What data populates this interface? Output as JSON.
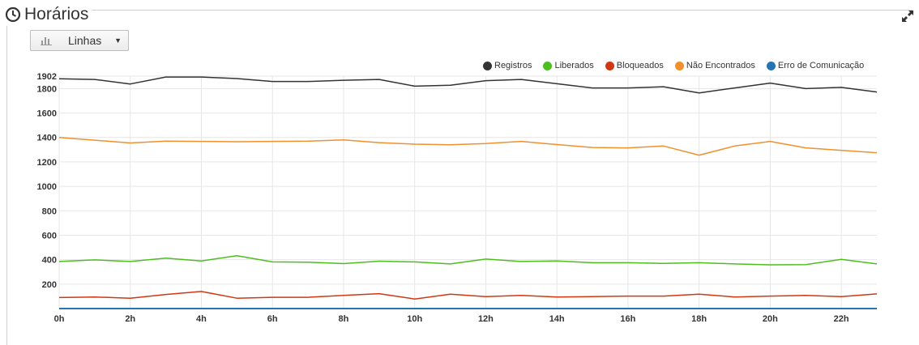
{
  "panel": {
    "title": "Horários"
  },
  "toolbar": {
    "chart_type_label": "Linhas"
  },
  "icons": {
    "title": "clock-icon",
    "expand": "expand-icon",
    "chart_type": "bar-chart-icon"
  },
  "chart_data": {
    "type": "line",
    "x": [
      "0h",
      "1h",
      "2h",
      "3h",
      "4h",
      "5h",
      "6h",
      "7h",
      "8h",
      "9h",
      "10h",
      "11h",
      "12h",
      "13h",
      "14h",
      "15h",
      "16h",
      "17h",
      "18h",
      "19h",
      "20h",
      "21h",
      "22h",
      "23h"
    ],
    "x_tick_labels": [
      "0h",
      "2h",
      "4h",
      "6h",
      "8h",
      "10h",
      "12h",
      "14h",
      "16h",
      "18h",
      "20h",
      "22h"
    ],
    "y_tick_labels": [
      "200",
      "400",
      "600",
      "800",
      "1000",
      "1200",
      "1400",
      "1600",
      "1800",
      "1902"
    ],
    "ylim": [
      0,
      1902
    ],
    "grid": true,
    "legend_position": "top-right",
    "series": [
      {
        "name": "Registros",
        "color": "#333333",
        "values": [
          1880,
          1875,
          1838,
          1895,
          1895,
          1882,
          1858,
          1858,
          1868,
          1875,
          1820,
          1828,
          1865,
          1875,
          1840,
          1805,
          1805,
          1815,
          1765,
          1805,
          1845,
          1800,
          1810,
          1772
        ]
      },
      {
        "name": "Liberados",
        "color": "#4cbf1f",
        "values": [
          385,
          398,
          385,
          412,
          390,
          432,
          382,
          380,
          368,
          388,
          382,
          365,
          405,
          385,
          390,
          375,
          375,
          370,
          375,
          365,
          358,
          360,
          402,
          365
        ]
      },
      {
        "name": "Bloqueados",
        "color": "#d03814",
        "values": [
          90,
          95,
          85,
          115,
          140,
          85,
          92,
          92,
          108,
          122,
          78,
          118,
          98,
          108,
          95,
          98,
          102,
          102,
          118,
          95,
          102,
          108,
          98,
          120
        ]
      },
      {
        "name": "Não Encontrados",
        "color": "#f0902e",
        "values": [
          1400,
          1378,
          1355,
          1370,
          1368,
          1365,
          1368,
          1370,
          1380,
          1358,
          1345,
          1340,
          1350,
          1368,
          1342,
          1318,
          1315,
          1330,
          1255,
          1330,
          1368,
          1315,
          1295,
          1275
        ]
      },
      {
        "name": "Erro de Comunicação",
        "color": "#2575b5",
        "values": [
          0,
          0,
          0,
          0,
          0,
          0,
          0,
          0,
          0,
          0,
          0,
          0,
          0,
          0,
          0,
          0,
          0,
          0,
          0,
          0,
          0,
          0,
          0,
          0
        ]
      }
    ]
  }
}
